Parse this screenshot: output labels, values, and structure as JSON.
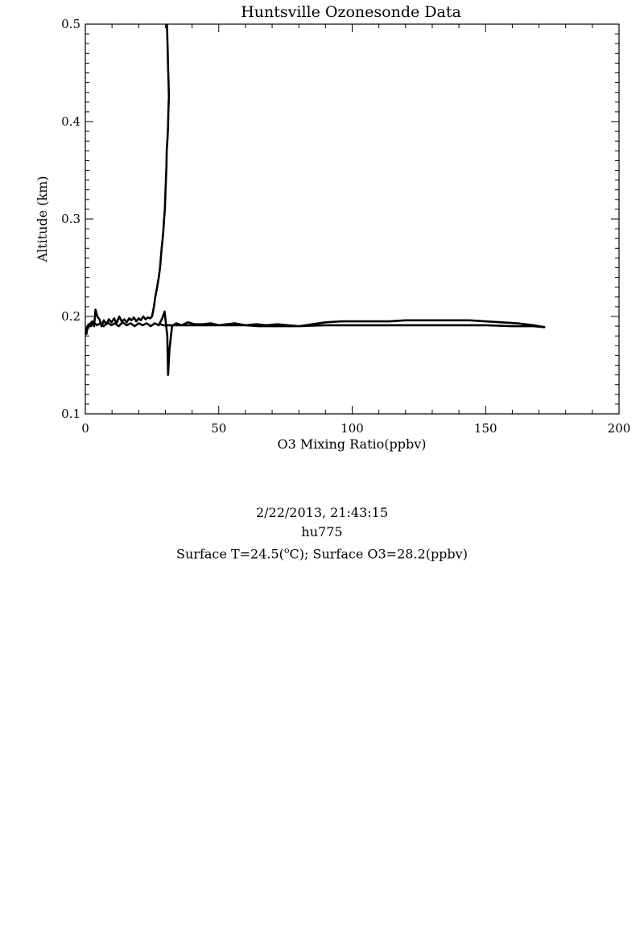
{
  "chart_data": {
    "type": "line",
    "title": "Huntsville Ozonesonde Data",
    "xlabel": "O3 Mixing Ratio(ppbv)",
    "ylabel": "Altitude (km)",
    "xlim": [
      0,
      200
    ],
    "ylim": [
      0.1,
      0.5
    ],
    "xticks": [
      "0",
      "50",
      "100",
      "150",
      "200"
    ],
    "yticks": [
      "0.1",
      "0.2",
      "0.3",
      "0.4",
      "0.5"
    ],
    "grid": false,
    "series": [
      {
        "x": [
          30.6,
          30.9,
          31.0,
          31.2,
          31.3,
          31.1,
          31.0,
          30.8,
          30.5,
          30.4,
          30.2,
          30.0,
          29.8,
          29.5,
          29.3,
          29.0,
          28.6,
          28.3,
          28.0,
          27.5,
          26.9,
          26.2,
          25.7,
          25.0,
          24.3,
          23.4,
          22.6,
          21.7,
          20.8,
          20.0,
          19.1,
          18.2,
          17.3,
          16.4,
          15.5,
          14.6,
          13.6,
          12.7,
          11.7,
          10.8,
          9.8,
          8.8,
          7.9,
          6.9,
          6.1,
          5.3,
          4.5,
          3.8,
          3.3,
          2.6,
          1.9,
          1.2,
          0.6,
          0.4,
          0.5,
          1.2,
          2.1,
          3.2,
          4.4,
          5.6,
          6.9,
          8.3,
          9.7,
          11.1,
          12.5,
          14.0,
          15.5,
          17.0,
          18.5,
          20.0,
          21.5,
          23.0,
          24.5,
          26.0,
          27.5,
          28.8,
          29.7,
          30.2,
          30.7,
          31.0,
          31.5,
          32.5,
          34.0,
          36.0,
          38.5,
          41.0,
          44.0,
          47.0,
          50.0,
          53.0,
          56.0,
          60.0,
          64.0,
          68.0,
          72.0,
          76.0,
          80.0,
          85.0,
          90.0,
          96.0,
          102.0,
          108.0,
          114.0,
          120.0,
          126.0,
          132.0,
          138.0,
          144.0,
          150.0,
          156.0,
          162.0,
          168.0,
          172.0,
          168.0,
          160.0,
          150.0,
          140.0,
          130.0,
          120.0,
          110.0,
          100.0,
          90.0,
          80.0,
          75.0,
          70.0,
          65.0,
          60.0,
          55.0,
          50.0,
          45.0,
          40.0,
          36.0,
          33.0,
          31.0,
          30.0,
          29.0,
          28.3,
          27.8
        ],
        "y": [
          0.5,
          0.47,
          0.455,
          0.44,
          0.425,
          0.41,
          0.395,
          0.383,
          0.37,
          0.355,
          0.34,
          0.325,
          0.31,
          0.3,
          0.29,
          0.28,
          0.27,
          0.26,
          0.25,
          0.24,
          0.23,
          0.22,
          0.21,
          0.2,
          0.198,
          0.199,
          0.197,
          0.2,
          0.196,
          0.198,
          0.195,
          0.199,
          0.196,
          0.198,
          0.194,
          0.197,
          0.195,
          0.2,
          0.193,
          0.198,
          0.194,
          0.197,
          0.192,
          0.196,
          0.19,
          0.197,
          0.2,
          0.207,
          0.19,
          0.195,
          0.193,
          0.189,
          0.186,
          0.182,
          0.188,
          0.192,
          0.19,
          0.194,
          0.191,
          0.193,
          0.19,
          0.194,
          0.191,
          0.193,
          0.19,
          0.194,
          0.191,
          0.193,
          0.19,
          0.193,
          0.191,
          0.193,
          0.19,
          0.193,
          0.191,
          0.198,
          0.205,
          0.193,
          0.18,
          0.14,
          0.165,
          0.19,
          0.193,
          0.191,
          0.194,
          0.192,
          0.192,
          0.193,
          0.191,
          0.192,
          0.193,
          0.191,
          0.192,
          0.191,
          0.192,
          0.191,
          0.19,
          0.192,
          0.194,
          0.195,
          0.195,
          0.195,
          0.195,
          0.196,
          0.196,
          0.196,
          0.196,
          0.196,
          0.195,
          0.194,
          0.193,
          0.191,
          0.189,
          0.19,
          0.19,
          0.191,
          0.191,
          0.191,
          0.191,
          0.191,
          0.191,
          0.191,
          0.19,
          0.19,
          0.19,
          0.19,
          0.191,
          0.191,
          0.191,
          0.191,
          0.191,
          0.191,
          0.191,
          0.191,
          0.191,
          0.191,
          0.192,
          0.192
        ]
      }
    ]
  },
  "info": {
    "datetime": "2/22/2013, 21:43:15",
    "station": "hu775",
    "surface_prefix": "Surface T=24.5(",
    "surface_deg": "o",
    "surface_suffix": "C); Surface O3=28.2(ppbv)"
  }
}
